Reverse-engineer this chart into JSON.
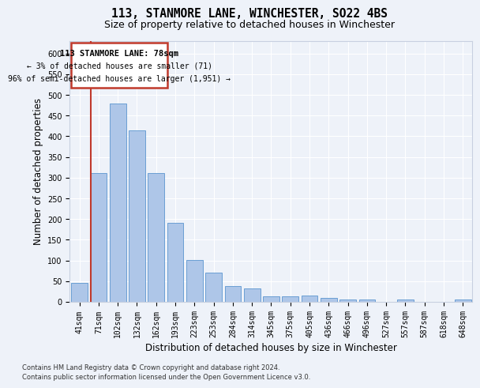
{
  "title": "113, STANMORE LANE, WINCHESTER, SO22 4BS",
  "subtitle": "Size of property relative to detached houses in Winchester",
  "xlabel": "Distribution of detached houses by size in Winchester",
  "ylabel": "Number of detached properties",
  "categories": [
    "41sqm",
    "71sqm",
    "102sqm",
    "132sqm",
    "162sqm",
    "193sqm",
    "223sqm",
    "253sqm",
    "284sqm",
    "314sqm",
    "345sqm",
    "375sqm",
    "405sqm",
    "436sqm",
    "466sqm",
    "496sqm",
    "527sqm",
    "557sqm",
    "587sqm",
    "618sqm",
    "648sqm"
  ],
  "values": [
    46,
    312,
    480,
    415,
    312,
    190,
    102,
    70,
    38,
    32,
    14,
    13,
    15,
    10,
    6,
    5,
    0,
    5,
    0,
    0,
    5
  ],
  "bar_color": "#aec6e8",
  "bar_edge_color": "#6a9fd4",
  "annotation_line1": "113 STANMORE LANE: 78sqm",
  "annotation_line2": "← 3% of detached houses are smaller (71)",
  "annotation_line3": "96% of semi-detached houses are larger (1,951) →",
  "annotation_box_color": "#c0392b",
  "ylim": [
    0,
    630
  ],
  "yticks": [
    0,
    50,
    100,
    150,
    200,
    250,
    300,
    350,
    400,
    450,
    500,
    550,
    600
  ],
  "footnote1": "Contains HM Land Registry data © Crown copyright and database right 2024.",
  "footnote2": "Contains public sector information licensed under the Open Government Licence v3.0.",
  "bg_color": "#eef2f9",
  "grid_color": "#ffffff",
  "title_fontsize": 10.5,
  "subtitle_fontsize": 9,
  "tick_fontsize": 7,
  "ylabel_fontsize": 8.5,
  "xlabel_fontsize": 8.5
}
